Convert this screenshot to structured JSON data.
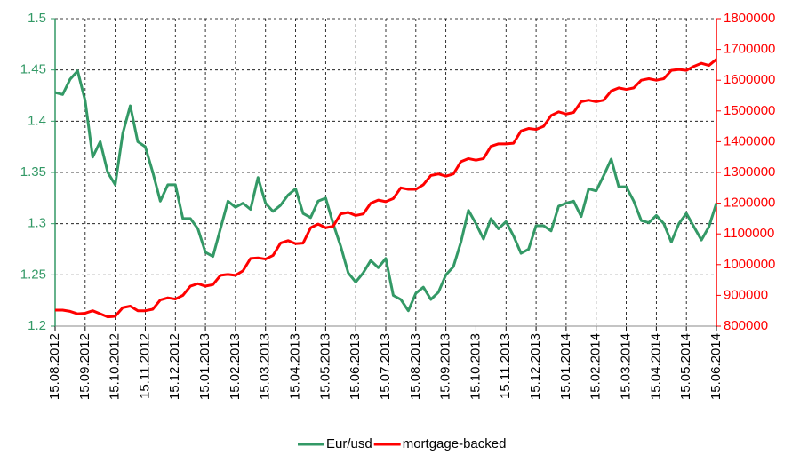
{
  "chart_data": {
    "type": "line",
    "categories": [
      "15.08.2012",
      null,
      null,
      null,
      "15.09.2012",
      null,
      null,
      null,
      "15.10.2012",
      null,
      null,
      null,
      "15.11.2012",
      null,
      null,
      null,
      "15.12.2012",
      null,
      null,
      null,
      "15.01.2013",
      null,
      null,
      null,
      "15.02.2013",
      null,
      null,
      null,
      "15.03.2013",
      null,
      null,
      null,
      "15.04.2013",
      null,
      null,
      null,
      "15.05.2013",
      null,
      null,
      null,
      "15.06.2013",
      null,
      null,
      null,
      "15.07.2013",
      null,
      null,
      null,
      "15.08.2013",
      null,
      null,
      null,
      "15.09.2013",
      null,
      null,
      null,
      "15.10.2013",
      null,
      null,
      null,
      "15.11.2013",
      null,
      null,
      null,
      "15.12.2013",
      null,
      null,
      null,
      "15.01.2014",
      null,
      null,
      null,
      "15.02.2014",
      null,
      null,
      null,
      "15.03.2014",
      null,
      null,
      null,
      "15.04.2014",
      null,
      null,
      null,
      "15.05.2014",
      null,
      null,
      null,
      "15.06.2014"
    ],
    "series": [
      {
        "name": "Eur/usd",
        "color": "#339966",
        "axis": "y",
        "values": [
          1.428,
          1.426,
          1.441,
          1.449,
          1.42,
          1.365,
          1.38,
          1.35,
          1.338,
          1.388,
          1.415,
          1.38,
          1.375,
          1.35,
          1.322,
          1.338,
          1.338,
          1.305,
          1.305,
          1.295,
          1.272,
          1.268,
          1.295,
          1.322,
          1.316,
          1.32,
          1.314,
          1.345,
          1.32,
          1.312,
          1.318,
          1.328,
          1.334,
          1.31,
          1.306,
          1.322,
          1.325,
          1.3,
          1.278,
          1.252,
          1.243,
          1.252,
          1.264,
          1.257,
          1.266,
          1.23,
          1.226,
          1.215,
          1.232,
          1.238,
          1.226,
          1.233,
          1.25,
          1.258,
          1.282,
          1.313,
          1.3,
          1.285,
          1.305,
          1.295,
          1.302,
          1.288,
          1.271,
          1.275,
          1.298,
          1.298,
          1.293,
          1.317,
          1.32,
          1.322,
          1.307,
          1.334,
          1.332,
          1.347,
          1.363,
          1.336,
          1.336,
          1.322,
          1.303,
          1.301,
          1.308,
          1.3,
          1.282,
          1.3,
          1.31,
          1.297,
          1.284,
          1.297,
          1.32
        ]
      },
      {
        "name": "mortgage-backed",
        "color": "#ff0000",
        "axis": "y2",
        "values": [
          852000,
          852000,
          848000,
          840000,
          842000,
          850000,
          840000,
          830000,
          832000,
          860000,
          865000,
          850000,
          850000,
          855000,
          885000,
          892000,
          888000,
          900000,
          930000,
          938000,
          930000,
          935000,
          965000,
          968000,
          965000,
          980000,
          1020000,
          1022000,
          1018000,
          1030000,
          1070000,
          1078000,
          1068000,
          1070000,
          1120000,
          1132000,
          1120000,
          1125000,
          1165000,
          1170000,
          1160000,
          1165000,
          1200000,
          1210000,
          1205000,
          1215000,
          1250000,
          1245000,
          1245000,
          1260000,
          1290000,
          1295000,
          1288000,
          1295000,
          1335000,
          1345000,
          1340000,
          1345000,
          1385000,
          1393000,
          1393000,
          1395000,
          1435000,
          1443000,
          1440000,
          1450000,
          1485000,
          1497000,
          1490000,
          1495000,
          1530000,
          1535000,
          1530000,
          1535000,
          1565000,
          1575000,
          1570000,
          1575000,
          1600000,
          1605000,
          1600000,
          1605000,
          1632000,
          1635000,
          1632000,
          1645000,
          1655000,
          1648000,
          1668000
        ]
      }
    ],
    "ylim": [
      1.2,
      1.5
    ],
    "yticks": [
      1.2,
      1.25,
      1.3,
      1.35,
      1.4,
      1.45,
      1.5
    ],
    "y2lim": [
      800000,
      1800000
    ],
    "y2ticks": [
      800000,
      900000,
      1000000,
      1100000,
      1200000,
      1300000,
      1400000,
      1500000,
      1600000,
      1700000,
      1800000
    ],
    "grid": true,
    "legend": "bottom"
  }
}
